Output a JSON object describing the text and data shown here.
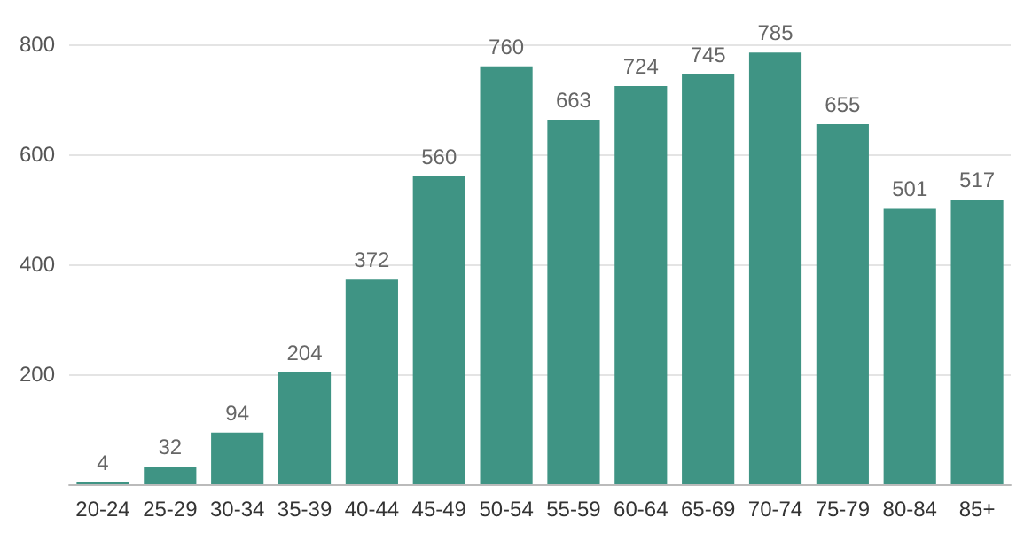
{
  "chart_data": {
    "type": "bar",
    "categories": [
      "20-24",
      "25-29",
      "30-34",
      "35-39",
      "40-44",
      "45-49",
      "50-54",
      "55-59",
      "60-64",
      "65-69",
      "70-74",
      "75-79",
      "80-84",
      "85+"
    ],
    "values": [
      4,
      32,
      94,
      204,
      372,
      560,
      760,
      663,
      724,
      745,
      785,
      655,
      501,
      517
    ],
    "color": "#3f9484",
    "ylim": [
      0,
      800
    ],
    "yticks": [
      {
        "value": 0,
        "label": null
      },
      200,
      400,
      600,
      800
    ],
    "grid": "y",
    "data_labels": true
  }
}
